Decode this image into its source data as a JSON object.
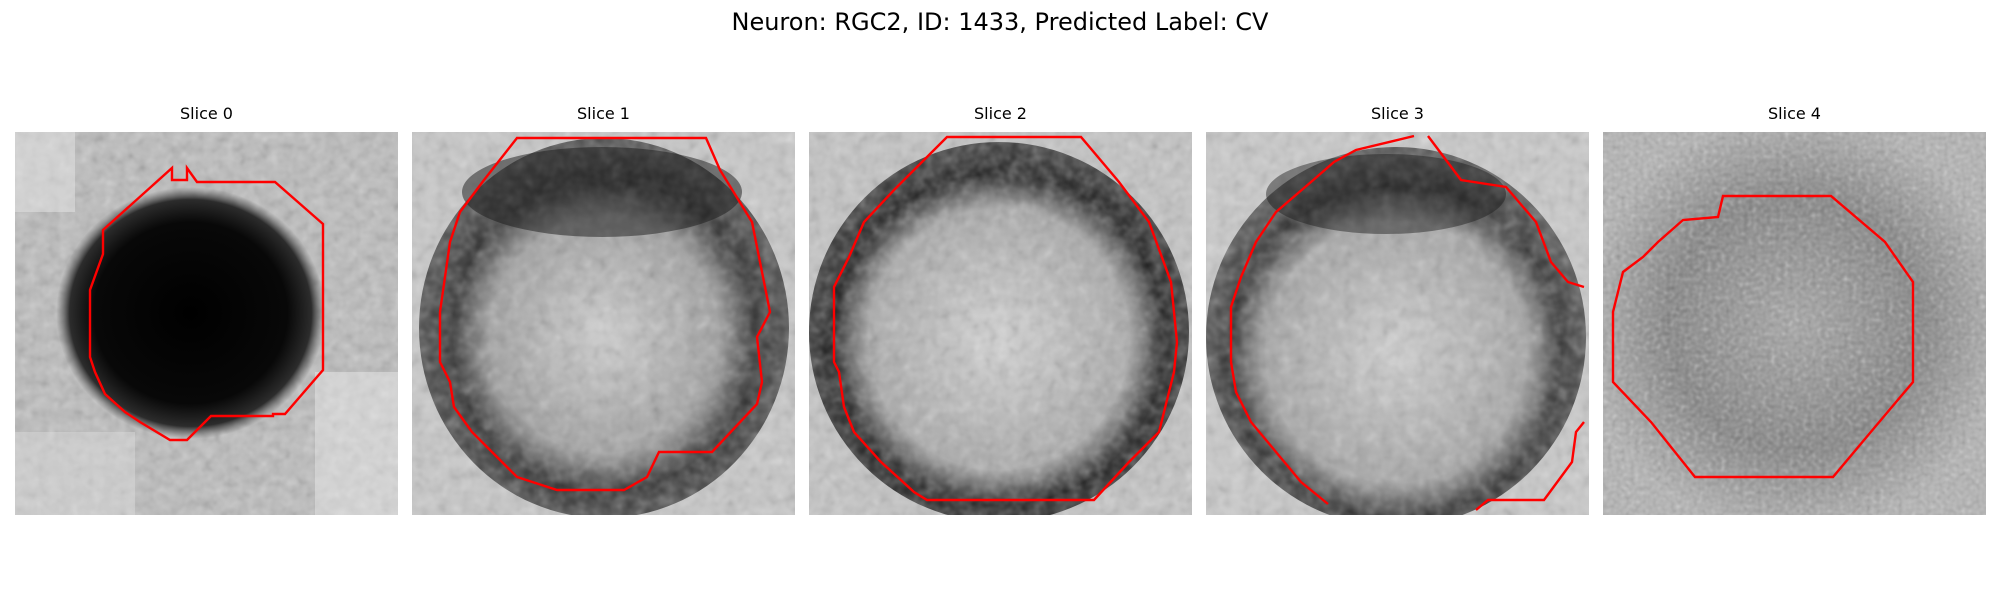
{
  "figure": {
    "title": "Neuron: RGC2, ID: 1433, Predicted Label: CV",
    "contour_color": "#ff0000",
    "panels": [
      {
        "title": "Slice 0"
      },
      {
        "title": "Slice 1"
      },
      {
        "title": "Slice 2"
      },
      {
        "title": "Slice 3"
      },
      {
        "title": "Slice 4"
      }
    ]
  }
}
